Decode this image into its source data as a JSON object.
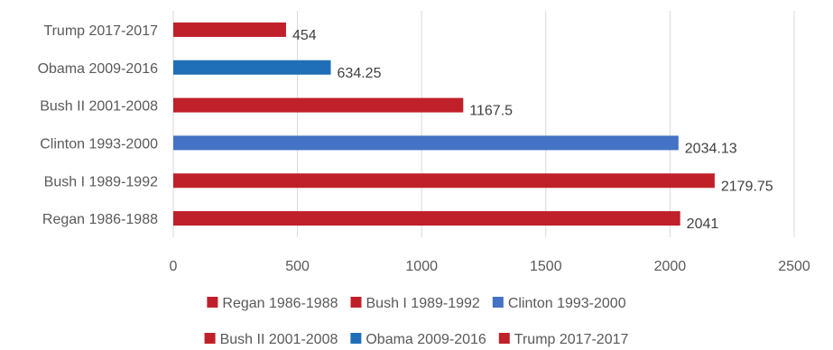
{
  "chart_data": {
    "type": "bar",
    "orientation": "horizontal",
    "categories": [
      "Regan 1986-1988",
      "Bush I 1989-1992",
      "Clinton 1993-2000",
      "Bush II 2001-2008",
      "Obama 2009-2016",
      "Trump 2017-2017"
    ],
    "values": [
      2041,
      2179.75,
      2034.13,
      1167.5,
      634.25,
      454
    ],
    "value_labels": [
      "2041",
      "2179.75",
      "2034.13",
      "1167.5",
      "634.25",
      "454"
    ],
    "series_colors": [
      "#c0202a",
      "#c0202a",
      "#4472c4",
      "#c0202a",
      "#1f6fb8",
      "#c0202a"
    ],
    "xlim": [
      0,
      2500
    ],
    "xticks": [
      0,
      500,
      1000,
      1500,
      2000,
      2500
    ],
    "xtick_labels": [
      "0",
      "500",
      "1000",
      "1500",
      "2000",
      "2500"
    ],
    "grid": "vertical",
    "legend_position": "bottom",
    "title": "",
    "xlabel": "",
    "ylabel": ""
  }
}
